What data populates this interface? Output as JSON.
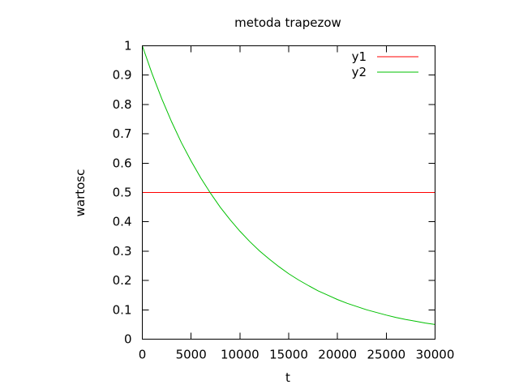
{
  "chart_data": {
    "type": "line",
    "title": "metoda trapezow",
    "xlabel": "t",
    "ylabel": "wartosc",
    "xlim": [
      0,
      30000
    ],
    "ylim": [
      0,
      1
    ],
    "xticks": [
      0,
      5000,
      10000,
      15000,
      20000,
      25000,
      30000
    ],
    "yticks": [
      0,
      0.1,
      0.2,
      0.3,
      0.4,
      0.5,
      0.6,
      0.7,
      0.8,
      0.9,
      1
    ],
    "ytick_labels": [
      "0",
      "0.1",
      "0.2",
      "0.3",
      "0.4",
      "0.5",
      "0.6",
      "0.7",
      "0.8",
      "0.9",
      "1"
    ],
    "grid": false,
    "legend_position": "top-right",
    "series": [
      {
        "name": "y1",
        "color": "#ff0000",
        "x": [
          0,
          30000
        ],
        "y": [
          0.5,
          0.5
        ]
      },
      {
        "name": "y2",
        "color": "#00c000",
        "x": [
          0,
          1000,
          2000,
          3000,
          4000,
          5000,
          6000,
          7000,
          8000,
          9000,
          10000,
          11000,
          12000,
          13000,
          14000,
          15000,
          16000,
          17000,
          18000,
          19000,
          20000,
          21000,
          22000,
          23000,
          24000,
          25000,
          26000,
          27000,
          28000,
          29000,
          30000
        ],
        "y": [
          1.0,
          0.905,
          0.819,
          0.741,
          0.67,
          0.607,
          0.549,
          0.497,
          0.449,
          0.407,
          0.368,
          0.333,
          0.301,
          0.273,
          0.247,
          0.223,
          0.202,
          0.183,
          0.165,
          0.15,
          0.135,
          0.122,
          0.111,
          0.1,
          0.091,
          0.082,
          0.074,
          0.067,
          0.061,
          0.055,
          0.05
        ]
      }
    ]
  }
}
